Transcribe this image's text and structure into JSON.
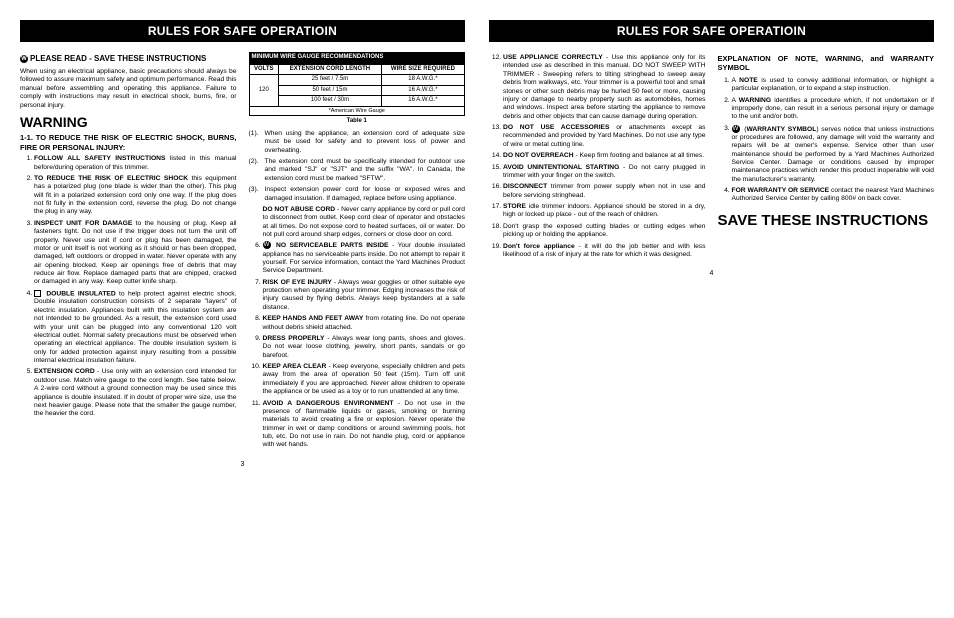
{
  "headerTitle": "RULES FOR SAFE OPERATIOIN",
  "pageLeftNum": "3",
  "pageRightNum": "4",
  "leftCol1": {
    "headIcon": "W",
    "head": "PLEASE READ - SAVE THESE INSTRUCTIONS",
    "intro": "When using an electrical appliance, basic precautions should always be followed to assure maximum safety and optimum performance. Read this manual before assembling and operating this appliance. Failure to comply with instructions may result in electrical shock, burns, fire, or personal injury.",
    "warning": "WARNING",
    "sub": "1-1. TO REDUCE THE RISK OF ELECTRIC SHOCK, BURNS, FIRE OR PERSONAL INJURY:",
    "items": [
      {
        "b": "FOLLOW ALL SAFETY INSTRUCTIONS",
        "t": " listed in this manual before/during operation of this trimmer."
      },
      {
        "b": "TO REDUCE THE RISK OF ELECTRIC SHOCK",
        "t": " this equipment has a polarized plug (one blade is wider than the other). This plug will fit in a polarized extension cord only one way. If the plug does not fit fully in the extension cord, reverse the plug. Do not change the plug in any way."
      },
      {
        "b": "INSPECT UNIT FOR DAMAGE",
        "t": " to the housing or plug. Keep all fasteners tight. Do not use if the trigger does not turn the unit off properly. Never use unit if cord or plug has been damaged, the motor or unit itself is not working as it should or has been dropped, damaged, left outdoors or dropped in water. Never operate with any air opening blocked. Keep air openings free of debris that may reduce air flow. Replace damaged parts that are chipped, cracked or damaged in any way.  Keep cutter knife sharp."
      },
      {
        "icon": "sq",
        "b": "DOUBLE INSULATED",
        "t": " to help protect against electric shock. Double insulation construction consists of 2 separate \"layers\" of electric insulation. Appliances built with this insulation system are not intended to be grounded. As a result, the extension cord used with your unit can be plugged into any conventional 120 volt electrical outlet. Normal safety precautions must be observed when operating an electrical appliance. The double insulation system is only for added protection against injury resulting from a possible internal electrical insulation failure."
      },
      {
        "b": "EXTENSION CORD",
        "t": " - Use only with an extension cord intended for outdoor use. Match wire gauge to the cord length. See table below. A 2-wire cord without a ground connection may be used since this appliance is double insulated. If in doubt of proper wire size, use the next heavier gauge. Please note that the smaller the gauge number, the heavier the cord."
      }
    ]
  },
  "wireTable": {
    "title": "MINIMUM WIRE GAUGE RECOMMENDATIONS",
    "h1": "VOLTS",
    "h2": "EXTENSION CORD LENGTH",
    "h3": "WIRE SIZE REQUIRED",
    "volts": "120",
    "rows": [
      {
        "len": "25 feet / 7.5m",
        "size": "18 A.W.G.*"
      },
      {
        "len": "50 feet / 15m",
        "size": "16 A.W.G.*"
      },
      {
        "len": "100 feet / 30m",
        "size": "16 A.W.G.*"
      }
    ],
    "foot": "*American Wire Gauge",
    "caption": "Table 1"
  },
  "leftCol2Paren": [
    "When using the appliance, an extension cord of adequate size must be used for safety and to prevent loss of power and overheating.",
    "The extension cord must be specifically intended for outdoor use and marked \"SJ\" or \"SJT\" and the suffix \"WA\". In Canada, the extension cord must be marked \"SFTW\".",
    "Inspect extension power cord for loose or exposed wires and damaged insulation. If damaged, replace before using appliance."
  ],
  "abuseHead": "DO NOT ABUSE CORD",
  "abuseText": " - Never carry appliance by cord or pull cord to disconnect from outlet. Keep cord clear of operator and obstacles at all times. Do not expose cord to heated surfaces, oil or water. Do not pull cord around sharp edges, corners or close door on cord.",
  "leftCol2Items": [
    {
      "icon": "w",
      "b": "NO SERVICEABLE PARTS INSIDE",
      "t": " - Your double insulated appliance has no serviceable parts inside. Do not attempt to repair it yourself. For service information, contact the Yard Machines Product Service Department."
    },
    {
      "b": "RISK OF EYE INJURY",
      "t": " - Always wear goggles or other suitable eye protection when operating your trimmer. Edging increases the risk of injury caused by flying debris. Always keep bystanders at a safe distance."
    },
    {
      "b": "KEEP HANDS AND FEET AWAY",
      "t": " from rotating line. Do not operate without debris shield attached."
    },
    {
      "b": "DRESS PROPERLY",
      "t": " - Always wear long pants, shoes and gloves. Do not wear loose clothing, jewelry, short pants, sandals or go barefoot."
    },
    {
      "b": "KEEP AREA CLEAR",
      "t": " - Keep everyone, especially children and pets away from the area of operation 50 feet (15m). Turn off unit immediately if you are approached. Never allow children to operate the appliance or be used as a toy or to run unattended at any time."
    },
    {
      "b": "AVOID A DANGEROUS ENVIRONMENT",
      "t": " - Do not use in the presence of flammable liquids or gases, smoking or burning materials to avoid creating a fire or explosion. Never operate the trimmer in wet or damp conditions or around swimming pools, hot tub, etc. Do not use in rain. Do not handle plug, cord or appliance with wet hands."
    }
  ],
  "rightCol1Items": [
    {
      "n": "12",
      "b": "USE APPLIANCE CORRECTLY",
      "t": " - Use this appliance only for its intended use as described in this manual. DO NOT SWEEP WITH TRIMMER - Sweeping refers to tilting stringhead to sweep away debris from walkways, etc. Your trimmer is a powerful tool and small stones or other such debris may be hurled 50 feet or more, causing injury or damage to nearby property such as automobiles, homes and windows. Inspect area before starting the appliance to remove debris and other objects that can cause damage during operation."
    },
    {
      "n": "13",
      "b": "DO NOT USE ACCESSORIES",
      "t": " or attachments except as recommended and provided by Yard Machines. Do not use any type of wire or metal cutting line."
    },
    {
      "n": "14",
      "b": "DO NOT OVERREACH",
      "t": " - Keep firm footing and balance at all times."
    },
    {
      "n": "15",
      "b": "AVOID UNINTENTIONAL STARTING",
      "t": " - Do not carry plugged in trimmer with your finger on the switch."
    },
    {
      "n": "16",
      "b": "DISCONNECT",
      "t": " trimmer from power supply when not in use and before servicing stringhead."
    },
    {
      "n": "17",
      "b": "STORE",
      "t": " idle trimmer indoors. Appliance should be stored in a dry, high or locked up place - out of the reach of children."
    },
    {
      "n": "18",
      "t": "Don't grasp the exposed cutting blades or cutting edges when picking up or holding the appliance.",
      "b": ""
    },
    {
      "n": "19",
      "b": "Don't force appliance",
      "t": " - it will do the job better and with less likelihood of a risk of injury at the rate for which it was designed."
    }
  ],
  "rightCol2": {
    "head": "EXPLANATION OF NOTE, WARNING, and WARRANTY SYMBOL",
    "items": [
      {
        "t": "A <b>NOTE</b> is used to convey additional information, or highlight a particular explanation, or to expand a step instruction."
      },
      {
        "t": "A <b>WARNING</b> identifies a procedure which, if not undertaken or if improperly done, can result in a serious personal injury or damage to the unit and/or both."
      },
      {
        "icon": "w",
        "t": "(<b>WARRANTY SYMBOL</b>) serves notice that unless instructions or procedures are followed, any damage will void the warranty and repairs will be at owner's expense. Service other than user maintenance should be performed by a Yard Machines Authorized Service Center. Damage or conditions caused by improper maintenance practices which render this product inoperable will void the manufacturer's warranty."
      },
      {
        "t": "<b>FOR WARRANTY OR SERVICE</b> contact the nearest Yard Machines Authorized Service Center by calling 800# on back cover."
      }
    ],
    "save": "SAVE THESE INSTRUCTIONS"
  }
}
